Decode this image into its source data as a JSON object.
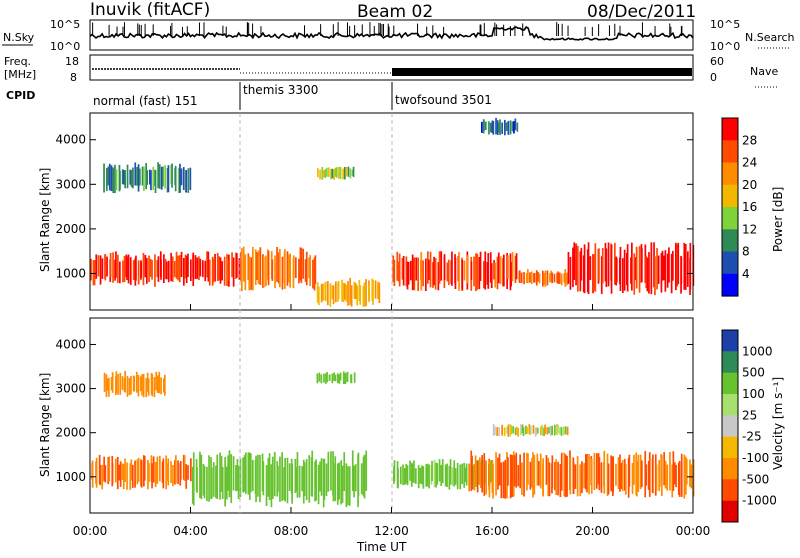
{
  "header": {
    "title": "Inuvik (fitACF)",
    "beam": "Beam 02",
    "date": "08/Dec/2011"
  },
  "top_panels": {
    "nsky_label": "N.Sky",
    "nsky_ticks": [
      "10^5",
      "10^0"
    ],
    "nsearch_label": "N.Search",
    "nsearch_ticks": [
      "10^5",
      "10^0"
    ],
    "freq_label_1": "Freq.",
    "freq_label_2": "[MHz]",
    "freq_ticks": [
      "18",
      "8"
    ],
    "nave_label": "Nave",
    "nave_ticks": [
      "60",
      "0"
    ],
    "cpid_label": "CPID",
    "cpid_segments": [
      {
        "label": "normal (fast) 151",
        "start_h": 0,
        "end_h": 6
      },
      {
        "label": "themis 3300",
        "start_h": 6,
        "end_h": 12
      },
      {
        "label": "twofsound 3501",
        "start_h": 12,
        "end_h": 24
      }
    ]
  },
  "power_colorbar": {
    "label": "Power [dB]",
    "ticks": [
      "28",
      "24",
      "20",
      "16",
      "12",
      "8",
      "4"
    ],
    "colors": [
      "#ff0000",
      "#ff4a00",
      "#ff8c00",
      "#f2b800",
      "#7fd23a",
      "#2e8b57",
      "#1c4fb0",
      "#0000ff"
    ]
  },
  "velocity_colorbar": {
    "label": "Velocity [m s⁻¹]",
    "ticks": [
      "1000",
      "500",
      "100",
      "25",
      "-25",
      "-100",
      "-500",
      "-1000"
    ],
    "colors": [
      "#1c3fa8",
      "#2e8b57",
      "#66c22e",
      "#a8e070",
      "#c8c8c8",
      "#f5b800",
      "#ff8c00",
      "#ff4a00",
      "#e00000"
    ]
  },
  "chart_data": [
    {
      "type": "heatmap",
      "panel": "power",
      "ylabel": "Slant Range [km]",
      "xlabel": "Time UT",
      "x_ticks": [
        "00:00",
        "04:00",
        "08:00",
        "12:00",
        "16:00",
        "20:00",
        "00:00"
      ],
      "y_ticks": [
        1000,
        2000,
        3000,
        4000
      ],
      "xlim_hours": [
        0,
        24
      ],
      "ylim_km": [
        180,
        4600
      ],
      "color_scale": "Power [dB]",
      "regions": [
        {
          "t0": 0,
          "t1": 6,
          "r0": 700,
          "r1": 1500,
          "value": 26
        },
        {
          "t0": 6,
          "t1": 9,
          "r0": 600,
          "r1": 1600,
          "value": 22
        },
        {
          "t0": 9,
          "t1": 11.5,
          "r0": 250,
          "r1": 900,
          "value": 18
        },
        {
          "t0": 12,
          "t1": 17,
          "r0": 600,
          "r1": 1500,
          "value": 25
        },
        {
          "t0": 17,
          "t1": 19,
          "r0": 700,
          "r1": 1100,
          "value": 22
        },
        {
          "t0": 19,
          "t1": 24,
          "r0": 500,
          "r1": 1700,
          "value": 28
        },
        {
          "t0": 0.5,
          "t1": 4,
          "r0": 2800,
          "r1": 3500,
          "value": 8
        },
        {
          "t0": 9,
          "t1": 10.5,
          "r0": 3100,
          "r1": 3400,
          "value": 12
        },
        {
          "t0": 15.5,
          "t1": 17,
          "r0": 4100,
          "r1": 4500,
          "value": 6
        }
      ]
    },
    {
      "type": "heatmap",
      "panel": "velocity",
      "ylabel": "Slant Range [km]",
      "xlabel": "Time UT",
      "x_ticks": [
        "00:00",
        "04:00",
        "08:00",
        "12:00",
        "16:00",
        "20:00",
        "00:00"
      ],
      "y_ticks": [
        1000,
        2000,
        3000,
        4000
      ],
      "xlim_hours": [
        0,
        24
      ],
      "ylim_km": [
        180,
        4600
      ],
      "color_scale": "Velocity [m s⁻¹]",
      "regions": [
        {
          "t0": 0,
          "t1": 4,
          "r0": 700,
          "r1": 1500,
          "value": -300
        },
        {
          "t0": 4,
          "t1": 11,
          "r0": 300,
          "r1": 1600,
          "value": 200
        },
        {
          "t0": 12,
          "t1": 16,
          "r0": 700,
          "r1": 1400,
          "value": 150
        },
        {
          "t0": 15,
          "t1": 24,
          "r0": 500,
          "r1": 1600,
          "value": -300
        },
        {
          "t0": 16,
          "t1": 19,
          "r0": 1900,
          "r1": 2200,
          "value": 0
        },
        {
          "t0": 9,
          "t1": 10.5,
          "r0": 3100,
          "r1": 3400,
          "value": 200
        },
        {
          "t0": 0.5,
          "t1": 3,
          "r0": 2800,
          "r1": 3400,
          "value": -200
        }
      ]
    }
  ]
}
